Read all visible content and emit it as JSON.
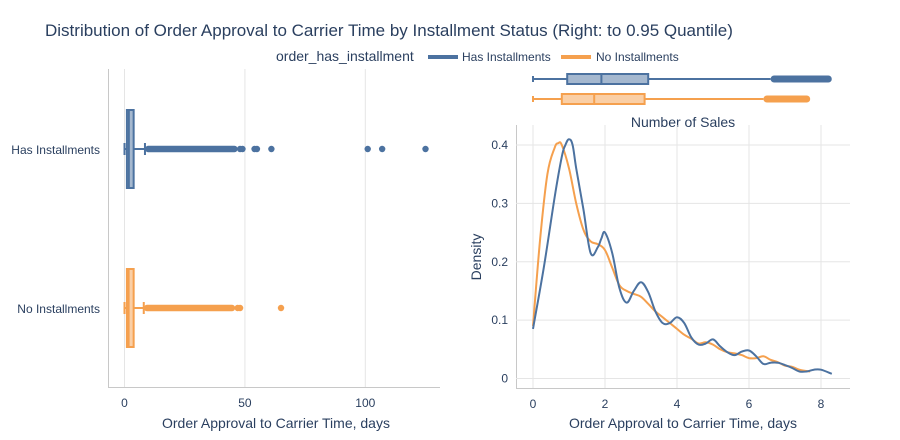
{
  "chart_data": {
    "title": "Distribution of Order Approval to Carrier Time by Installment Status (Right: to 0.95 Quantile)",
    "legend": {
      "title": "order_has_installment",
      "position": "top-center",
      "entries": [
        {
          "name": "Has Installments",
          "color": "#4c72a0"
        },
        {
          "name": "No Installments",
          "color": "#f5a04e"
        }
      ]
    },
    "colors": {
      "has": "#4c72a0",
      "no": "#f5a04e"
    },
    "left_boxplot": {
      "type": "box",
      "orientation": "horizontal",
      "xlabel": "Order Approval to Carrier Time, days",
      "xlim": [
        -7,
        133
      ],
      "xticks": [
        0,
        50,
        100
      ],
      "categories": [
        "Has Installments",
        "No Installments"
      ],
      "series": [
        {
          "name": "Has Installments",
          "min": 0,
          "q1": 1.0,
          "median": 1.8,
          "q3": 3.8,
          "whisker_high": 8.5,
          "outlier_range": [
            8.5,
            47
          ],
          "outliers": [
            48,
            49,
            54,
            55,
            61,
            101,
            107,
            125
          ]
        },
        {
          "name": "No Installments",
          "min": 0,
          "q1": 1.0,
          "median": 1.7,
          "q3": 3.8,
          "whisker_high": 8.0,
          "outlier_range": [
            8.0,
            46
          ],
          "outliers": [
            47,
            48,
            65
          ]
        }
      ]
    },
    "top_right_boxplot": {
      "type": "box",
      "orientation": "horizontal",
      "xlim": [
        -0.3,
        8.7
      ],
      "series": [
        {
          "name": "Has Installments",
          "min": 0,
          "q1": 0.95,
          "median": 1.9,
          "q3": 3.2,
          "whisker_high": 6.6,
          "outlier_range": [
            6.6,
            8.3
          ]
        },
        {
          "name": "No Installments",
          "min": 0,
          "q1": 0.8,
          "median": 1.7,
          "q3": 3.1,
          "whisker_high": 6.4,
          "outlier_range": [
            6.4,
            7.7
          ]
        }
      ]
    },
    "density": {
      "type": "line",
      "title": "Number of Sales",
      "xlabel": "Order Approval to Carrier Time, days",
      "ylabel": "Density",
      "xlim": [
        -0.4,
        8.8
      ],
      "ylim": [
        -0.018,
        0.44
      ],
      "xticks": [
        0,
        2,
        4,
        6,
        8
      ],
      "yticks": [
        0,
        0.1,
        0.2,
        0.3,
        0.4
      ],
      "series": [
        {
          "name": "Has Installments",
          "x": [
            0,
            0.3,
            0.6,
            0.8,
            0.9,
            1.0,
            1.1,
            1.2,
            1.4,
            1.6,
            1.8,
            1.9,
            2.0,
            2.2,
            2.4,
            2.6,
            2.8,
            3.0,
            3.2,
            3.4,
            3.6,
            3.8,
            4.0,
            4.2,
            4.4,
            4.6,
            4.8,
            5.0,
            5.2,
            5.4,
            5.6,
            5.8,
            6.0,
            6.2,
            6.4,
            6.6,
            6.8,
            7.0,
            7.2,
            7.4,
            7.6,
            7.8,
            8.0,
            8.3
          ],
          "y": [
            0.085,
            0.19,
            0.31,
            0.38,
            0.4,
            0.41,
            0.4,
            0.36,
            0.29,
            0.215,
            0.225,
            0.24,
            0.25,
            0.215,
            0.155,
            0.13,
            0.15,
            0.165,
            0.148,
            0.115,
            0.095,
            0.095,
            0.105,
            0.095,
            0.07,
            0.058,
            0.06,
            0.067,
            0.055,
            0.045,
            0.04,
            0.046,
            0.048,
            0.038,
            0.025,
            0.027,
            0.027,
            0.023,
            0.018,
            0.012,
            0.012,
            0.015,
            0.015,
            0.008
          ]
        },
        {
          "name": "No Installments",
          "x": [
            0,
            0.2,
            0.4,
            0.6,
            0.7,
            0.8,
            1.0,
            1.2,
            1.4,
            1.6,
            1.8,
            2.0,
            2.2,
            2.4,
            2.6,
            2.8,
            3.0,
            3.2,
            3.4,
            3.6,
            3.8,
            4.0,
            4.2,
            4.4,
            4.6,
            4.8,
            5.0,
            5.2,
            5.4,
            5.6,
            5.8,
            6.0,
            6.2,
            6.4,
            6.6,
            6.8,
            7.0,
            7.2,
            7.4,
            7.7
          ],
          "y": [
            0.09,
            0.24,
            0.35,
            0.395,
            0.403,
            0.4,
            0.36,
            0.3,
            0.255,
            0.235,
            0.23,
            0.22,
            0.19,
            0.16,
            0.15,
            0.145,
            0.14,
            0.128,
            0.115,
            0.105,
            0.095,
            0.085,
            0.075,
            0.068,
            0.06,
            0.062,
            0.058,
            0.05,
            0.045,
            0.043,
            0.04,
            0.035,
            0.035,
            0.038,
            0.032,
            0.028,
            0.022,
            0.02,
            0.015,
            0.012
          ]
        }
      ]
    }
  }
}
